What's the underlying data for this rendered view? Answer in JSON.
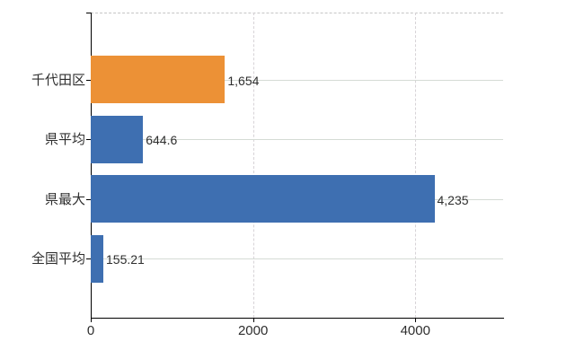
{
  "chart_data": {
    "type": "bar",
    "orientation": "horizontal",
    "title": "",
    "categories": [
      "千代田区",
      "県平均",
      "県最大",
      "全国平均"
    ],
    "values": [
      1654,
      644.6,
      4235,
      155.21
    ],
    "value_labels": [
      "1,654",
      "644.6",
      "4,235",
      "155.21"
    ],
    "bar_colors": [
      "#ec9136",
      "#3e6fb1",
      "#3e6fb1",
      "#3e6fb1"
    ],
    "x_ticks": [
      0,
      2000,
      4000
    ],
    "x_tick_labels": [
      "0",
      "2000",
      "4000"
    ],
    "xlim": [
      0,
      5082
    ],
    "ylabel": "",
    "xlabel": "",
    "legend": "none",
    "grid": {
      "vertical_lines": "dashed",
      "horizontal_category_lines": "solid",
      "top_border": "dashed"
    }
  },
  "colors": {
    "bar_blue": "#3e6fb1",
    "bar_orange": "#ec9136",
    "grid_solid": "#d5dbd5",
    "grid_dashed": "#d7d3d7",
    "top_border_dashed": "#c6c6c6",
    "axis": "#000000",
    "text": "#2e2e2e",
    "background": "#ffffff"
  }
}
